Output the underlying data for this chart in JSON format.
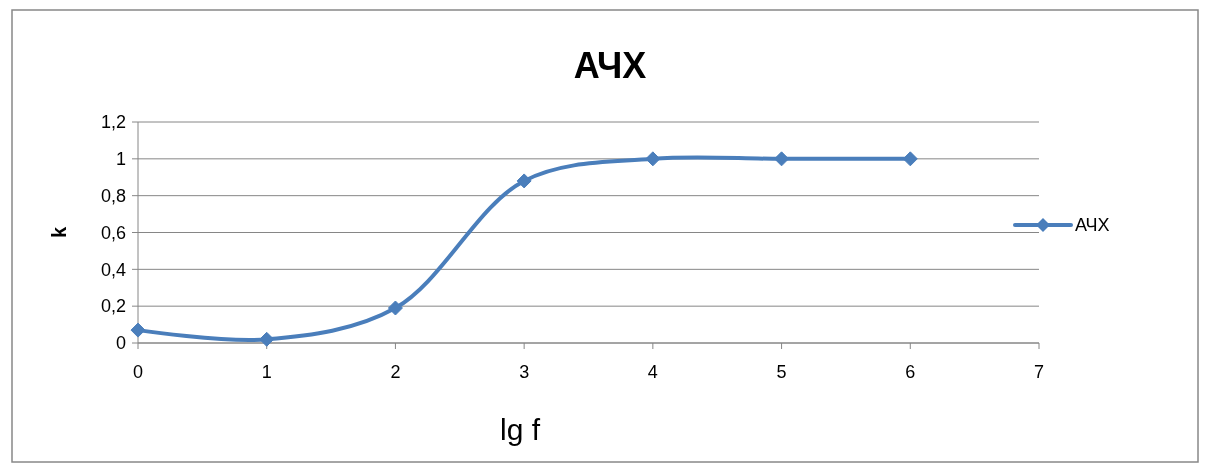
{
  "chart_data": {
    "type": "line",
    "title": "АЧХ",
    "xlabel": "lg f",
    "ylabel": "k",
    "x": [
      0,
      1,
      2,
      3,
      4,
      5,
      6
    ],
    "series": [
      {
        "name": "АЧХ",
        "color": "#4a7ebb",
        "values": [
          0.07,
          0.02,
          0.19,
          0.88,
          1,
          1,
          1
        ]
      }
    ],
    "xlim": [
      0,
      7
    ],
    "xticks": [
      0,
      1,
      2,
      3,
      4,
      5,
      6,
      7
    ],
    "ylim": [
      0,
      1.2
    ],
    "yticks": [
      0,
      {
        "value": 0.2,
        "label": "0,2"
      },
      {
        "value": 0.4,
        "label": "0,4"
      },
      {
        "value": 0.6,
        "label": "0,6"
      },
      {
        "value": 0.8,
        "label": "0,8"
      },
      1,
      {
        "value": 1.2,
        "label": "1,2"
      }
    ],
    "grid": "y",
    "legend": "right",
    "marker": "diamond",
    "line_style": "solid"
  }
}
